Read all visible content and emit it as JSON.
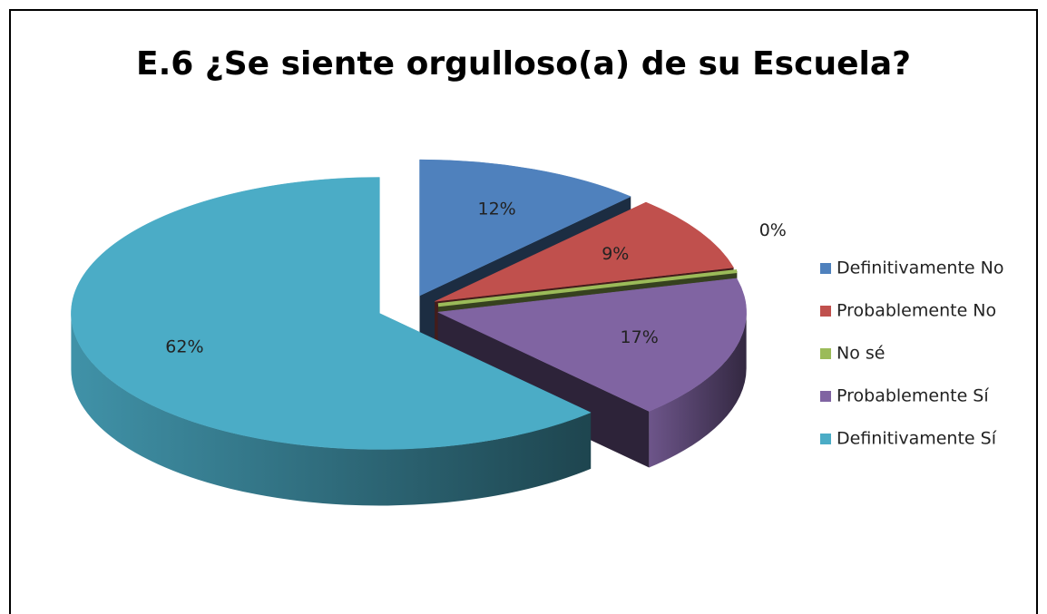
{
  "chart_data": {
    "type": "pie",
    "title": "E.6 ¿Se siente orgulloso(a) de su Escuela?",
    "categories": [
      "Definitivamente No",
      "Probablemente No",
      "No sé",
      "Probablemente Sí",
      "Definitivamente Sí"
    ],
    "values": [
      12,
      9,
      0,
      17,
      62
    ],
    "value_labels": [
      "12%",
      "9%",
      "0%",
      "17%",
      "62%"
    ],
    "colors": [
      "#4f81bd",
      "#c0504d",
      "#9bbb59",
      "#8064a2",
      "#4bacc6"
    ],
    "legend": "right"
  }
}
